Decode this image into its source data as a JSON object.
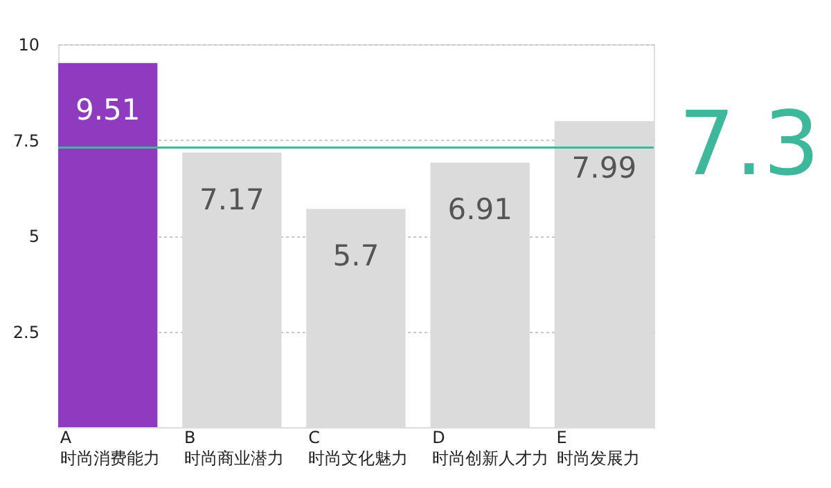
{
  "chart_data": {
    "type": "bar",
    "categories": [
      "A\n时尚消费能力",
      "B\n时尚商业潜力",
      "C\n时尚文化魅力",
      "D\n时尚创新人才力",
      "E\n时尚发展力"
    ],
    "values": [
      9.51,
      7.17,
      5.7,
      6.91,
      7.99
    ],
    "colors": [
      "#8e3bbf",
      "#dcdbdc",
      "#dcdbdc",
      "#dcdbdc",
      "#dcdbdc"
    ],
    "ylim": [
      0,
      10
    ],
    "yticks": [
      2.5,
      5,
      7.5,
      10
    ],
    "grid": "y",
    "data_labels": true,
    "ref_lines": [
      {
        "axis": "y",
        "value": 7.3,
        "label": "7.3",
        "color": "#3db89b"
      }
    ]
  }
}
